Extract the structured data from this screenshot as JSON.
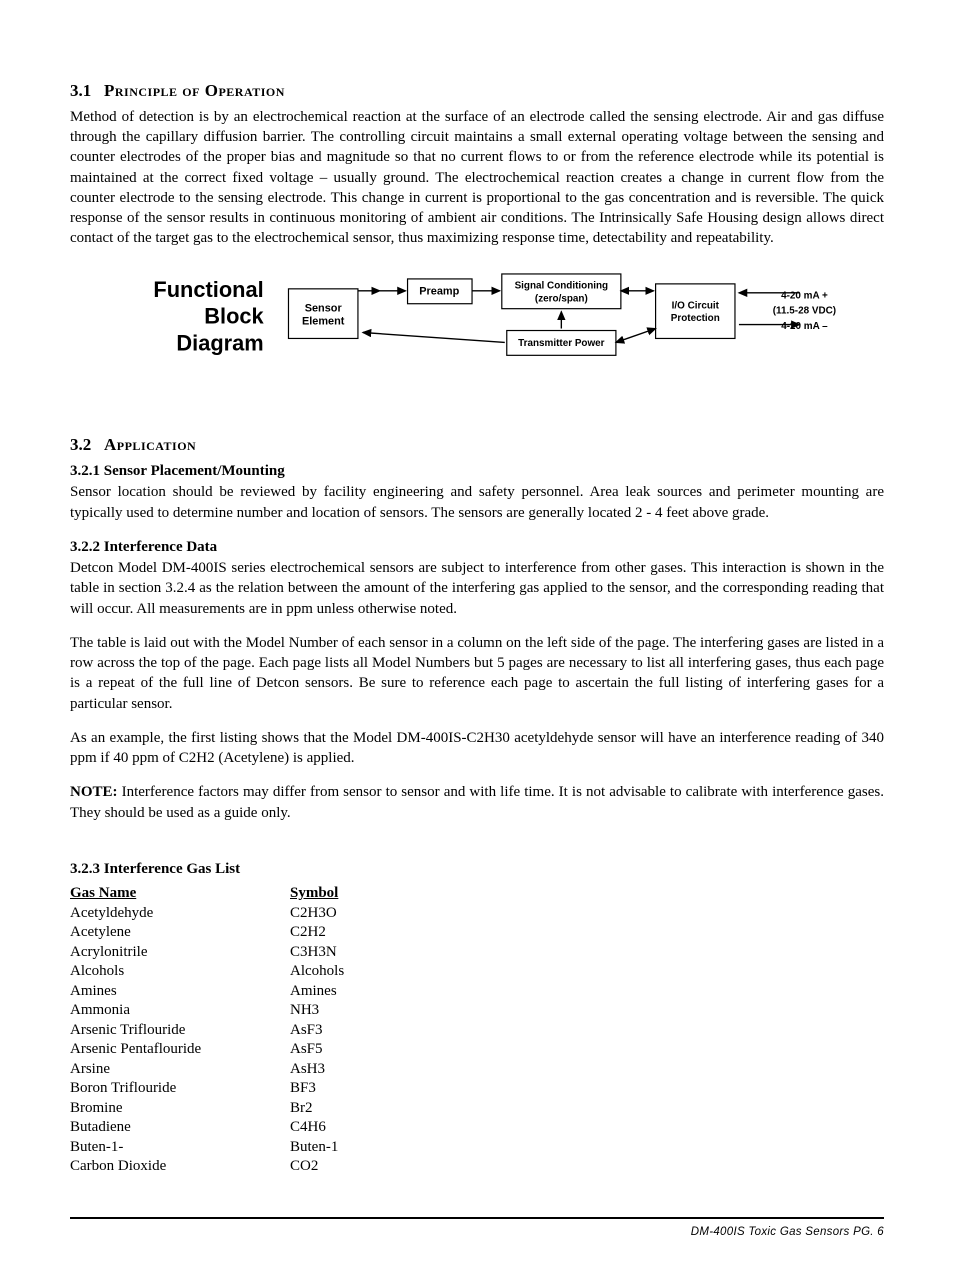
{
  "section31": {
    "num": "3.1",
    "title": "Principle of Operation",
    "body": "Method of detection is by an electrochemical reaction at the surface of an electrode called the sensing electrode. Air and gas diffuse through the capillary diffusion barrier. The controlling circuit maintains a small external operating voltage between the sensing and counter electrodes of the proper bias and magnitude so that no current flows to or from the reference electrode while its potential is maintained at the correct fixed voltage – usually ground. The electrochemical reaction creates a change in current flow from the counter electrode to the sensing electrode. This change in current is proportional to the gas concentration and is reversible. The quick response of the sensor results in continuous monitoring of ambient air conditions. The Intrinsically Safe Housing design allows direct contact of the target gas to the electrochemical sensor, thus maximizing response time, detectability and repeatability."
  },
  "diagram": {
    "title_l1": "Functional",
    "title_l2": "Block",
    "title_l3": "Diagram",
    "sensor": "Sensor",
    "element": "Element",
    "preamp": "Preamp",
    "signal_l1": "Signal Conditioning",
    "signal_l2": "(zero/span)",
    "trans_power": "Transmitter Power",
    "io_l1": "I/O Circuit",
    "io_l2": "Protection",
    "out1": "4-20 mA +",
    "out2": "(11.5-28 VDC)",
    "out3": "4-20 mA –"
  },
  "section32": {
    "num": "3.2",
    "title": "Application"
  },
  "sub321": {
    "heading": "3.2.1  Sensor Placement/Mounting",
    "body": "Sensor location should be reviewed by facility engineering and safety personnel. Area leak sources and perimeter mounting are typically used to determine number and location of sensors. The sensors are generally located 2 - 4 feet above grade."
  },
  "sub322": {
    "heading": "3.2.2  Interference Data",
    "p1": "Detcon Model DM-400IS series electrochemical sensors are subject to interference from other gases. This interaction is shown in the table in section 3.2.4 as the relation between the amount of the interfering gas applied to the sensor, and the corresponding reading that will occur. All measurements are in ppm unless otherwise noted.",
    "p2": "The table is laid out with the Model Number of each sensor in a column on the left side of the page. The interfering gases are listed in a row across the top of the page. Each page lists all Model Numbers but 5 pages are necessary to list all interfering gases, thus each page is a repeat of the full line of Detcon sensors. Be sure to reference each page to ascertain the full listing of interfering gases for a particular sensor.",
    "p3": "As an example, the first listing shows that the Model DM-400IS-C2H30 acetyldehyde sensor will have an interference reading of 340 ppm if 40 ppm of C2H2 (Acetylene) is applied.",
    "note_label": "NOTE:",
    "note_body": " Interference factors may differ from sensor to sensor and with life time. It is not advisable to calibrate with interference gases. They should be used as a guide only."
  },
  "sub323": {
    "heading": "3.2.3  Interference Gas List",
    "col1": "Gas Name",
    "col2": "Symbol",
    "rows": [
      {
        "name": "Acetyldehyde",
        "sym": "C2H3O"
      },
      {
        "name": "Acetylene",
        "sym": "C2H2"
      },
      {
        "name": "Acrylonitrile",
        "sym": "C3H3N"
      },
      {
        "name": "Alcohols",
        "sym": "Alcohols"
      },
      {
        "name": "Amines",
        "sym": "Amines"
      },
      {
        "name": "Ammonia",
        "sym": "NH3"
      },
      {
        "name": "Arsenic Triflouride",
        "sym": "AsF3"
      },
      {
        "name": "Arsenic Pentaflouride",
        "sym": "AsF5"
      },
      {
        "name": "Arsine",
        "sym": "AsH3"
      },
      {
        "name": "Boron Triflouride",
        "sym": "BF3"
      },
      {
        "name": "Bromine",
        "sym": "Br2"
      },
      {
        "name": "Butadiene",
        "sym": "C4H6"
      },
      {
        "name": "Buten-1-",
        "sym": "Buten-1"
      },
      {
        "name": "Carbon Dioxide",
        "sym": "CO2"
      }
    ]
  },
  "footer": "DM-400IS Toxic Gas Sensors   PG. 6"
}
